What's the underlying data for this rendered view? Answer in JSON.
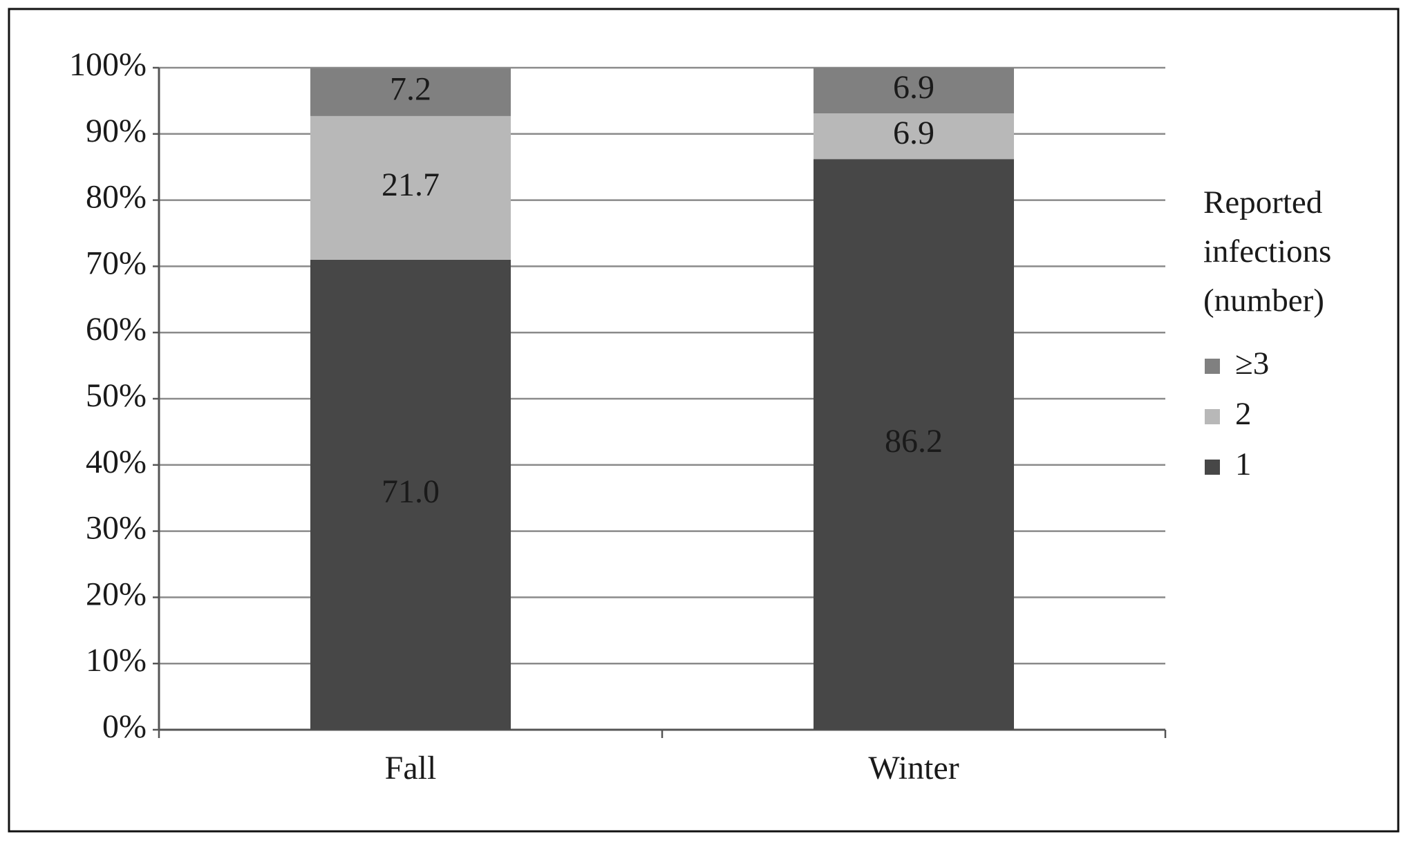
{
  "chart_data": {
    "type": "stacked_bar",
    "categories": [
      "Fall",
      "Winter"
    ],
    "series": [
      {
        "name": "1",
        "color": "#474747",
        "values": [
          71.0,
          86.2
        ],
        "value_labels": [
          "71.0",
          "86.2"
        ]
      },
      {
        "name": "2",
        "color": "#b8b8b8",
        "values": [
          21.7,
          6.9
        ],
        "value_labels": [
          "21.7",
          "6.9"
        ]
      },
      {
        "name": "≥3",
        "color": "#808080",
        "values": [
          7.2,
          6.9
        ],
        "value_labels": [
          "7.2",
          "6.9"
        ]
      }
    ],
    "ylim": [
      0,
      100
    ],
    "yticks": [
      {
        "value": 0,
        "label": "0%"
      },
      {
        "value": 10,
        "label": "10%"
      },
      {
        "value": 20,
        "label": "20%"
      },
      {
        "value": 30,
        "label": "30%"
      },
      {
        "value": 40,
        "label": "40%"
      },
      {
        "value": 50,
        "label": "50%"
      },
      {
        "value": 60,
        "label": "60%"
      },
      {
        "value": 70,
        "label": "70%"
      },
      {
        "value": 80,
        "label": "80%"
      },
      {
        "value": 90,
        "label": "90%"
      },
      {
        "value": 100,
        "label": "100%"
      }
    ],
    "grid": true,
    "legend_title": "Reported infections (number)",
    "legend_position": "right"
  }
}
